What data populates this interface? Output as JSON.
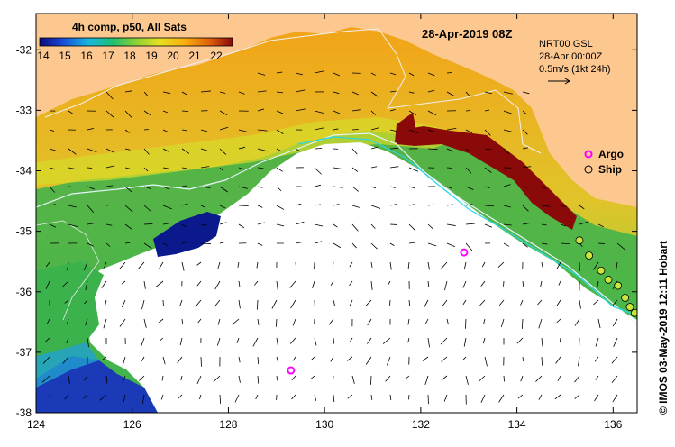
{
  "colorbar": {
    "title": "4h comp, p50, All Sats",
    "ticks": [
      "14",
      "15",
      "16",
      "17",
      "18",
      "19",
      "20",
      "21",
      "22"
    ]
  },
  "date_label": "28-Apr-2019 08Z",
  "current_info": {
    "line1": "NRT00 GSL",
    "line2": "28-Apr 00:00Z",
    "line3": "0.5m/s (1kt 24h)"
  },
  "legend": {
    "argo": "Argo",
    "ship": "Ship",
    "argo_color": "#ff00ff",
    "ship_color": "#c8e63c"
  },
  "credit": "© IMOS 03-May-2019 12:11 Hobart",
  "axes": {
    "x_ticks": [
      "124",
      "126",
      "128",
      "130",
      "132",
      "134",
      "136"
    ],
    "y_ticks": [
      "-32",
      "-33",
      "-34",
      "-35",
      "-36",
      "-37",
      "-38"
    ],
    "lon_range": [
      124,
      136.5
    ],
    "lat_range": [
      -38,
      -31.4
    ]
  },
  "colors": {
    "land": "#fcc890",
    "cloud": "#ffffff",
    "warm": "#f5a20c",
    "cool": "#2aa64a",
    "cold": "#0a1a8c",
    "hot": "#8a0a0a"
  },
  "argo_floats": [
    {
      "lon": 132.9,
      "lat": -35.35
    },
    {
      "lon": 129.3,
      "lat": -37.3
    }
  ],
  "ship_track": [
    {
      "lon": 135.3,
      "lat": -35.15
    },
    {
      "lon": 135.5,
      "lat": -35.4
    },
    {
      "lon": 135.75,
      "lat": -35.65
    },
    {
      "lon": 135.9,
      "lat": -35.8
    },
    {
      "lon": 136.1,
      "lat": -35.9
    },
    {
      "lon": 136.25,
      "lat": -36.1
    },
    {
      "lon": 136.35,
      "lat": -36.25
    },
    {
      "lon": 136.45,
      "lat": -36.35
    }
  ]
}
